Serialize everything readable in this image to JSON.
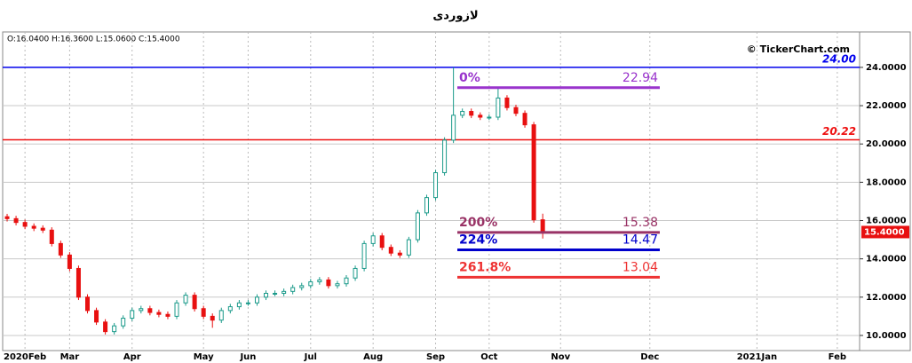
{
  "chart_data": {
    "type": "candlestick",
    "title": "لازوردی",
    "ohlc_header": "O:16.0400  H:16.3600  L:15.0600  C:15.4000",
    "watermark": "© TickerChart.com",
    "categories": [
      null,
      null,
      "2020Feb",
      null,
      null,
      null,
      null,
      "Mar",
      null,
      null,
      null,
      null,
      null,
      null,
      "Apr",
      null,
      null,
      null,
      null,
      null,
      null,
      null,
      "May",
      null,
      null,
      null,
      null,
      "Jun",
      null,
      null,
      null,
      null,
      null,
      null,
      "Jul",
      null,
      null,
      null,
      null,
      null,
      null,
      "Aug",
      null,
      null,
      null,
      null,
      null,
      null,
      "Sep",
      null,
      null,
      null,
      null,
      null,
      "Oct",
      null,
      null,
      null,
      null,
      null,
      null,
      null,
      "Nov",
      null,
      null,
      null,
      null,
      null,
      null,
      null,
      null,
      null,
      "Dec",
      null,
      null,
      null,
      null,
      null,
      null,
      null,
      null,
      null,
      null,
      null,
      "2021Jan",
      null,
      null,
      null,
      null,
      null,
      null,
      null,
      null,
      "Feb",
      null,
      null
    ],
    "open": [
      16.2,
      16.1,
      15.9,
      15.7,
      15.6,
      15.5,
      14.8,
      14.2,
      13.5,
      12.0,
      11.3,
      10.7,
      10.2,
      10.5,
      10.9,
      11.3,
      11.4,
      11.2,
      11.1,
      11.0,
      11.7,
      12.1,
      11.4,
      11.0,
      10.8,
      11.3,
      11.5,
      11.7,
      11.7,
      12.0,
      12.2,
      12.2,
      12.3,
      12.5,
      12.6,
      12.8,
      12.9,
      12.6,
      12.7,
      13.0,
      13.5,
      14.8,
      15.2,
      14.6,
      14.3,
      14.2,
      15.0,
      16.4,
      17.2,
      18.5,
      20.2,
      21.5,
      21.7,
      21.5,
      21.4,
      21.4,
      22.4,
      21.9,
      21.6,
      21.0,
      16.04,
      null,
      null,
      null,
      null,
      null,
      null,
      null,
      null,
      null,
      null,
      null,
      null,
      null,
      null,
      null,
      null,
      null,
      null,
      null,
      null,
      null,
      null,
      null,
      null,
      null,
      null,
      null,
      null,
      null,
      null,
      null,
      null,
      null,
      null,
      null
    ],
    "high": [
      16.35,
      16.25,
      16.05,
      15.85,
      15.75,
      15.65,
      14.95,
      14.35,
      13.65,
      12.15,
      11.45,
      10.85,
      10.65,
      11.05,
      11.45,
      11.55,
      11.55,
      11.35,
      11.25,
      11.85,
      12.25,
      12.25,
      11.55,
      11.15,
      11.45,
      11.65,
      11.85,
      11.85,
      12.15,
      12.35,
      12.35,
      12.45,
      12.65,
      12.75,
      12.95,
      13.05,
      13.05,
      12.85,
      13.15,
      13.65,
      14.95,
      15.35,
      15.35,
      14.75,
      14.45,
      15.15,
      16.55,
      17.35,
      18.65,
      20.35,
      24.0,
      21.85,
      21.85,
      21.65,
      21.55,
      22.94,
      22.55,
      22.05,
      21.75,
      21.15,
      16.36,
      null,
      null,
      null,
      null,
      null,
      null,
      null,
      null,
      null,
      null,
      null,
      null,
      null,
      null,
      null,
      null,
      null,
      null,
      null,
      null,
      null,
      null,
      null,
      null,
      null,
      null,
      null,
      null,
      null,
      null,
      null,
      null,
      null,
      null,
      null
    ],
    "low": [
      15.95,
      15.75,
      15.55,
      15.45,
      15.35,
      14.65,
      14.05,
      13.35,
      11.85,
      11.15,
      10.55,
      10.05,
      10.05,
      10.35,
      10.75,
      11.15,
      11.05,
      10.95,
      10.85,
      10.85,
      11.55,
      11.25,
      10.85,
      10.4,
      10.65,
      11.15,
      11.35,
      11.55,
      11.55,
      11.85,
      12.05,
      12.05,
      12.15,
      12.35,
      12.45,
      12.65,
      12.45,
      12.45,
      12.55,
      12.85,
      13.35,
      14.65,
      14.45,
      14.15,
      14.05,
      14.05,
      14.85,
      16.25,
      17.05,
      18.35,
      20.05,
      21.35,
      21.35,
      21.25,
      21.25,
      21.25,
      21.75,
      21.45,
      20.85,
      15.89,
      15.06,
      null,
      null,
      null,
      null,
      null,
      null,
      null,
      null,
      null,
      null,
      null,
      null,
      null,
      null,
      null,
      null,
      null,
      null,
      null,
      null,
      null,
      null,
      null,
      null,
      null,
      null,
      null,
      null,
      null,
      null,
      null,
      null,
      null,
      null,
      null
    ],
    "close": [
      16.1,
      15.9,
      15.7,
      15.6,
      15.5,
      14.8,
      14.2,
      13.5,
      12.0,
      11.3,
      10.7,
      10.2,
      10.5,
      10.9,
      11.3,
      11.4,
      11.2,
      11.1,
      11.0,
      11.7,
      12.1,
      11.4,
      11.0,
      10.8,
      11.3,
      11.5,
      11.7,
      11.7,
      12.0,
      12.2,
      12.2,
      12.3,
      12.5,
      12.6,
      12.8,
      12.9,
      12.6,
      12.7,
      13.0,
      13.5,
      14.8,
      15.2,
      14.6,
      14.3,
      14.2,
      15.0,
      16.4,
      17.2,
      18.5,
      20.2,
      21.5,
      21.7,
      21.5,
      21.4,
      21.4,
      22.4,
      21.9,
      21.6,
      21.0,
      16.04,
      15.4,
      null,
      null,
      null,
      null,
      null,
      null,
      null,
      null,
      null,
      null,
      null,
      null,
      null,
      null,
      null,
      null,
      null,
      null,
      null,
      null,
      null,
      null,
      null,
      null,
      null,
      null,
      null,
      null,
      null,
      null,
      null,
      null,
      null,
      null,
      null
    ],
    "up_color": "#1a9a8a",
    "down_color": "#e81010",
    "ylim": [
      9.21,
      25.85
    ],
    "yticks": [
      {
        "value": 10,
        "label": "10.0000"
      },
      {
        "value": 12,
        "label": "12.0000"
      },
      {
        "value": 14,
        "label": "14.0000"
      },
      {
        "value": 16,
        "label": "16.0000"
      },
      {
        "value": 18,
        "label": "18.0000"
      },
      {
        "value": 20,
        "label": "20.0000"
      },
      {
        "value": 22,
        "label": "22.0000"
      },
      {
        "value": 24,
        "label": "24.0000"
      }
    ],
    "grid": true,
    "hlines": [
      {
        "value": 24,
        "label": "24.00",
        "color": "#0000ee"
      },
      {
        "value": 20.22,
        "label": "20.22",
        "color": "#ee1111"
      }
    ],
    "levels": [
      {
        "name": "0%",
        "value": 22.94,
        "color": "#9933cc"
      },
      {
        "name": "200%",
        "value": 15.38,
        "color": "#993366"
      },
      {
        "name": "224%",
        "value": 14.47,
        "color": "#0000cc"
      },
      {
        "name": "261.8%",
        "value": 13.04,
        "color": "#ee3333"
      }
    ],
    "last_price": {
      "value": 15.4,
      "label": "15.4000",
      "color": "#e81010"
    }
  }
}
